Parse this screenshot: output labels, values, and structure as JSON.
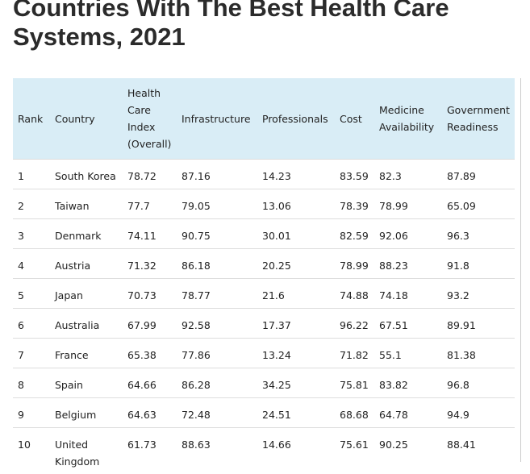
{
  "title": "Countries With The Best Health Care Systems, 2021",
  "table": {
    "headers": [
      "Rank",
      "Country",
      "Health Care Index (Overall)",
      "Infrastructure",
      "Professionals",
      "Cost",
      "Medicine Availability",
      "Government Readiness"
    ],
    "rows": [
      [
        1,
        "South Korea",
        78.72,
        87.16,
        14.23,
        83.59,
        82.3,
        87.89
      ],
      [
        2,
        "Taiwan",
        77.7,
        79.05,
        13.06,
        78.39,
        78.99,
        65.09
      ],
      [
        3,
        "Denmark",
        74.11,
        90.75,
        30.01,
        82.59,
        92.06,
        96.3
      ],
      [
        4,
        "Austria",
        71.32,
        86.18,
        20.25,
        78.99,
        88.23,
        91.8
      ],
      [
        5,
        "Japan",
        70.73,
        78.77,
        21.6,
        74.88,
        74.18,
        93.2
      ],
      [
        6,
        "Australia",
        67.99,
        92.58,
        17.37,
        96.22,
        67.51,
        89.91
      ],
      [
        7,
        "France",
        65.38,
        77.86,
        13.24,
        71.82,
        55.1,
        81.38
      ],
      [
        8,
        "Spain",
        64.66,
        86.28,
        34.25,
        75.81,
        83.82,
        96.8
      ],
      [
        9,
        "Belgium",
        64.63,
        72.48,
        24.51,
        68.68,
        64.78,
        94.9
      ],
      [
        10,
        "United Kingdom",
        61.73,
        88.63,
        14.66,
        75.61,
        90.25,
        88.41
      ]
    ]
  }
}
